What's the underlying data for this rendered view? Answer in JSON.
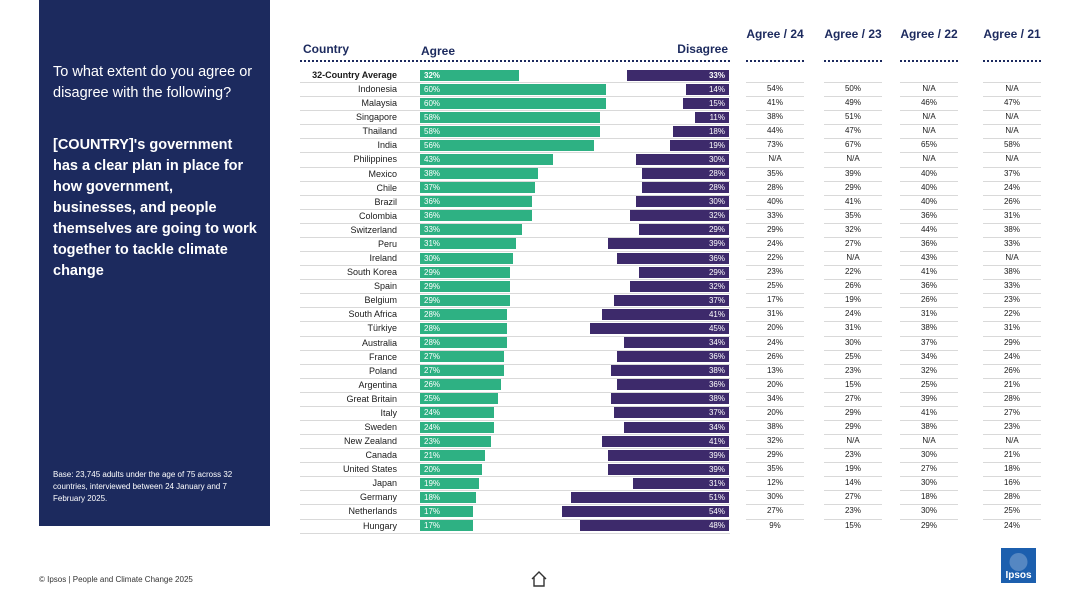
{
  "panel": {
    "question": "To what extent do you agree or disagree with the following?",
    "statement": "[COUNTRY]'s government has a clear plan in place for how government, businesses, and people themselves are going to work together to tackle climate change",
    "base": "Base: 23,745 adults under the age of 75 across 32 countries, interviewed between 24 January and 7 February 2025."
  },
  "headers": {
    "country": "Country",
    "agree": "Agree",
    "disagree": "Disagree",
    "agree24": "Agree / 24",
    "agree23": "Agree / 23",
    "agree22": "Agree / 22",
    "agree21": "Agree / 21"
  },
  "colors": {
    "agree": "#2eb183",
    "disagree": "#3d2a6b",
    "panel": "#1c2a5e"
  },
  "chart_data": {
    "type": "bar",
    "title": "To what extent do you agree or disagree with the following? [COUNTRY]'s government has a clear plan in place for how government, businesses, and people themselves are going to work together to tackle climate change",
    "categories": [
      "32-Country Average",
      "Indonesia",
      "Malaysia",
      "Singapore",
      "Thailand",
      "India",
      "Philippines",
      "Mexico",
      "Chile",
      "Brazil",
      "Colombia",
      "Switzerland",
      "Peru",
      "Ireland",
      "South Korea",
      "Spain",
      "Belgium",
      "South Africa",
      "Türkiye",
      "Australia",
      "France",
      "Poland",
      "Argentina",
      "Great Britain",
      "Italy",
      "Sweden",
      "New Zealand",
      "Canada",
      "United States",
      "Japan",
      "Germany",
      "Netherlands",
      "Hungary"
    ],
    "series": [
      {
        "name": "Agree",
        "values": [
          32,
          60,
          60,
          58,
          58,
          56,
          43,
          38,
          37,
          36,
          36,
          33,
          31,
          30,
          29,
          29,
          29,
          28,
          28,
          28,
          27,
          27,
          26,
          25,
          24,
          24,
          23,
          21,
          20,
          19,
          18,
          17,
          17
        ]
      },
      {
        "name": "Disagree",
        "values": [
          33,
          14,
          15,
          11,
          18,
          19,
          30,
          28,
          28,
          30,
          32,
          29,
          39,
          36,
          29,
          32,
          37,
          41,
          45,
          34,
          36,
          38,
          36,
          38,
          37,
          34,
          41,
          39,
          39,
          31,
          51,
          54,
          48
        ]
      }
    ],
    "trend_columns": [
      "Agree / 24",
      "Agree / 23",
      "Agree / 22",
      "Agree / 21"
    ],
    "trend": [
      [
        "",
        "",
        "",
        ""
      ],
      [
        "54%",
        "50%",
        "N/A",
        "N/A"
      ],
      [
        "41%",
        "49%",
        "46%",
        "47%"
      ],
      [
        "38%",
        "51%",
        "N/A",
        "N/A"
      ],
      [
        "44%",
        "47%",
        "N/A",
        "N/A"
      ],
      [
        "73%",
        "67%",
        "65%",
        "58%"
      ],
      [
        "N/A",
        "N/A",
        "N/A",
        "N/A"
      ],
      [
        "35%",
        "39%",
        "40%",
        "37%"
      ],
      [
        "28%",
        "29%",
        "40%",
        "24%"
      ],
      [
        "40%",
        "41%",
        "40%",
        "26%"
      ],
      [
        "33%",
        "35%",
        "36%",
        "31%"
      ],
      [
        "29%",
        "32%",
        "44%",
        "38%"
      ],
      [
        "24%",
        "27%",
        "36%",
        "33%"
      ],
      [
        "22%",
        "N/A",
        "43%",
        "N/A"
      ],
      [
        "23%",
        "22%",
        "41%",
        "38%"
      ],
      [
        "25%",
        "26%",
        "36%",
        "33%"
      ],
      [
        "17%",
        "19%",
        "26%",
        "23%"
      ],
      [
        "31%",
        "24%",
        "31%",
        "22%"
      ],
      [
        "20%",
        "31%",
        "38%",
        "31%"
      ],
      [
        "24%",
        "30%",
        "37%",
        "29%"
      ],
      [
        "26%",
        "25%",
        "34%",
        "24%"
      ],
      [
        "13%",
        "23%",
        "32%",
        "26%"
      ],
      [
        "20%",
        "15%",
        "25%",
        "21%"
      ],
      [
        "34%",
        "27%",
        "39%",
        "28%"
      ],
      [
        "20%",
        "29%",
        "41%",
        "27%"
      ],
      [
        "38%",
        "29%",
        "38%",
        "23%"
      ],
      [
        "32%",
        "N/A",
        "N/A",
        "N/A"
      ],
      [
        "29%",
        "23%",
        "30%",
        "21%"
      ],
      [
        "35%",
        "19%",
        "27%",
        "18%"
      ],
      [
        "12%",
        "14%",
        "30%",
        "16%"
      ],
      [
        "30%",
        "27%",
        "18%",
        "28%"
      ],
      [
        "27%",
        "23%",
        "30%",
        "25%"
      ],
      [
        "9%",
        "15%",
        "29%",
        "24%"
      ]
    ],
    "xlim": [
      0,
      100
    ]
  },
  "footer": {
    "text": "© Ipsos | People and Climate Change 2025",
    "logo": "Ipsos"
  }
}
